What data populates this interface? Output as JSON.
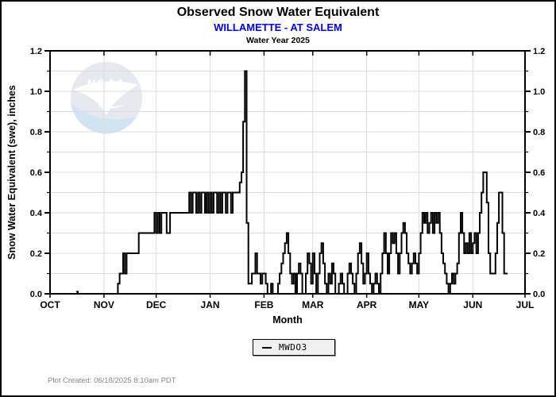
{
  "header": {
    "title": "Observed Snow Water Equivalent",
    "subtitle": "WILLAMETTE - AT SALEM",
    "subtitle_color": "#0000ff",
    "water_year": "Water Year 2025"
  },
  "watermark": {
    "name": "noaa-logo",
    "text": "NOAA"
  },
  "legend": {
    "entries": [
      {
        "label": "MWDO3",
        "color": "#000000"
      }
    ],
    "position": "bottom-center"
  },
  "footer": {
    "created_text": "Plot Created: 06/18/2025 8:10am PDT"
  },
  "theme": {
    "line_color": "#000000",
    "grid_color": "#dcdcdc",
    "axis_color": "#000000",
    "watermark_circle": "#e7e9f1",
    "watermark_wave": "#d2e4f2",
    "watermark_bird": "#ffffff",
    "footer_color": "#878787"
  },
  "chart_data": {
    "type": "line",
    "step": true,
    "title": "Observed Snow Water Equivalent",
    "subtitle": "WILLAMETTE - AT SALEM",
    "caption": "Water Year 2025",
    "xlabel": "Month",
    "ylabel": "Snow Water Equivalent (swe),  inches",
    "x_unit": "days since Oct 1 (Water Year 2025)",
    "month_ticks": [
      "OCT",
      "NOV",
      "DEC",
      "JAN",
      "FEB",
      "MAR",
      "APR",
      "MAY",
      "JUN",
      "JUL"
    ],
    "month_start_days": [
      0,
      31,
      61,
      92,
      123,
      151,
      182,
      212,
      243,
      273
    ],
    "xlim_days": [
      0,
      273
    ],
    "ylim": [
      0.0,
      1.2
    ],
    "y_major_ticks": [
      0.0,
      0.2,
      0.4,
      0.6,
      0.8,
      1.0,
      1.2
    ],
    "y_tick_labels": [
      "0.0",
      "0.2",
      "0.4",
      "0.6",
      "0.8",
      "1.0",
      "1.2"
    ],
    "y_minor_step": 0.1,
    "grid": true,
    "legend": {
      "position": "bottom-center",
      "entries": [
        {
          "label": "MWDO3",
          "color": "#000000"
        }
      ]
    },
    "series": [
      {
        "name": "MWDO3",
        "color": "#000000",
        "points": [
          [
            15,
            0.01
          ],
          [
            16,
            0.0
          ],
          [
            17,
            null
          ],
          [
            32,
            0.0
          ],
          [
            39,
            0.05
          ],
          [
            40,
            0.1
          ],
          [
            42,
            0.2
          ],
          [
            43,
            0.1
          ],
          [
            44,
            0.2
          ],
          [
            45,
            0.2
          ],
          [
            51,
            0.3
          ],
          [
            60,
            0.4
          ],
          [
            61,
            0.3
          ],
          [
            62,
            0.4
          ],
          [
            63,
            0.3
          ],
          [
            64,
            0.4
          ],
          [
            67,
            0.3
          ],
          [
            69,
            0.4
          ],
          [
            80,
            0.5
          ],
          [
            81,
            0.4
          ],
          [
            82,
            0.5
          ],
          [
            84,
            0.4
          ],
          [
            85,
            0.5
          ],
          [
            86,
            0.4
          ],
          [
            87,
            0.5
          ],
          [
            89,
            0.4
          ],
          [
            90,
            0.5
          ],
          [
            91,
            0.4
          ],
          [
            92,
            0.5
          ],
          [
            93,
            0.4
          ],
          [
            94,
            0.5
          ],
          [
            96,
            0.4
          ],
          [
            97,
            0.5
          ],
          [
            98,
            0.4
          ],
          [
            99,
            0.5
          ],
          [
            101,
            0.4
          ],
          [
            102,
            0.5
          ],
          [
            104,
            0.4
          ],
          [
            105,
            0.5
          ],
          [
            108,
            0.5
          ],
          [
            109,
            0.55
          ],
          [
            110,
            0.6
          ],
          [
            111,
            0.85
          ],
          [
            112,
            1.1
          ],
          [
            113,
            0.35
          ],
          [
            114,
            0.05
          ],
          [
            116,
            0.1
          ],
          [
            118,
            0.2
          ],
          [
            119,
            0.1
          ],
          [
            121,
            0.05
          ],
          [
            122,
            0.1
          ],
          [
            123,
            0.1
          ],
          [
            124,
            0.05
          ],
          [
            125,
            0.0
          ],
          [
            127,
            0.05
          ],
          [
            128,
            0.0
          ],
          [
            131,
            0.05
          ],
          [
            132,
            0.1
          ],
          [
            133,
            0.15
          ],
          [
            134,
            0.2
          ],
          [
            135,
            0.25
          ],
          [
            136,
            0.3
          ],
          [
            137,
            0.2
          ],
          [
            138,
            0.1
          ],
          [
            139,
            0.05
          ],
          [
            140,
            0.1
          ],
          [
            141,
            0.0
          ],
          [
            142,
            0.1
          ],
          [
            143,
            0.15
          ],
          [
            144,
            0.1
          ],
          [
            145,
            0.0
          ],
          [
            147,
            0.1
          ],
          [
            148,
            0.2
          ],
          [
            149,
            0.15
          ],
          [
            150,
            0.05
          ],
          [
            151,
            0.2
          ],
          [
            152,
            0.1
          ],
          [
            153,
            0.0
          ],
          [
            154,
            0.1
          ],
          [
            155,
            0.2
          ],
          [
            156,
            0.25
          ],
          [
            157,
            0.15
          ],
          [
            158,
            0.05
          ],
          [
            159,
            0.0
          ],
          [
            160,
            0.1
          ],
          [
            161,
            0.05
          ],
          [
            162,
            0.15
          ],
          [
            163,
            0.1
          ],
          [
            164,
            0.0
          ],
          [
            166,
            0.05
          ],
          [
            167,
            0.1
          ],
          [
            168,
            0.05
          ],
          [
            169,
            0.0
          ],
          [
            171,
            0.1
          ],
          [
            172,
            0.15
          ],
          [
            173,
            0.1
          ],
          [
            174,
            0.05
          ],
          [
            175,
            0.0
          ],
          [
            176,
            0.1
          ],
          [
            177,
            0.2
          ],
          [
            178,
            0.25
          ],
          [
            179,
            0.15
          ],
          [
            180,
            0.05
          ],
          [
            181,
            0.1
          ],
          [
            182,
            0.2
          ],
          [
            183,
            0.1
          ],
          [
            184,
            0.05
          ],
          [
            185,
            0.0
          ],
          [
            186,
            0.05
          ],
          [
            187,
            0.1
          ],
          [
            188,
            0.05
          ],
          [
            189,
            0.0
          ],
          [
            190,
            0.1
          ],
          [
            191,
            0.2
          ],
          [
            192,
            0.3
          ],
          [
            193,
            0.2
          ],
          [
            194,
            0.1
          ],
          [
            195,
            0.2
          ],
          [
            196,
            0.3
          ],
          [
            197,
            0.25
          ],
          [
            198,
            0.3
          ],
          [
            199,
            0.2
          ],
          [
            200,
            0.1
          ],
          [
            201,
            0.2
          ],
          [
            202,
            0.3
          ],
          [
            203,
            0.35
          ],
          [
            204,
            0.3
          ],
          [
            205,
            0.2
          ],
          [
            206,
            0.15
          ],
          [
            207,
            0.1
          ],
          [
            208,
            0.15
          ],
          [
            209,
            0.2
          ],
          [
            210,
            0.15
          ],
          [
            211,
            0.1
          ],
          [
            212,
            0.2
          ],
          [
            213,
            0.3
          ],
          [
            214,
            0.4
          ],
          [
            215,
            0.35
          ],
          [
            216,
            0.4
          ],
          [
            217,
            0.3
          ],
          [
            218,
            0.35
          ],
          [
            219,
            0.4
          ],
          [
            220,
            0.3
          ],
          [
            221,
            0.4
          ],
          [
            222,
            0.35
          ],
          [
            223,
            0.4
          ],
          [
            224,
            0.3
          ],
          [
            225,
            0.2
          ],
          [
            226,
            0.15
          ],
          [
            227,
            0.1
          ],
          [
            228,
            0.05
          ],
          [
            229,
            0.0
          ],
          [
            230,
            0.05
          ],
          [
            231,
            0.1
          ],
          [
            232,
            0.05
          ],
          [
            233,
            0.1
          ],
          [
            234,
            0.15
          ],
          [
            235,
            0.3
          ],
          [
            236,
            0.4
          ],
          [
            237,
            0.3
          ],
          [
            238,
            0.2
          ],
          [
            239,
            0.25
          ],
          [
            240,
            0.2
          ],
          [
            241,
            0.3
          ],
          [
            242,
            0.2
          ],
          [
            243,
            0.25
          ],
          [
            244,
            0.3
          ],
          [
            245,
            0.2
          ],
          [
            246,
            0.3
          ],
          [
            247,
            0.4
          ],
          [
            248,
            0.5
          ],
          [
            249,
            0.6
          ],
          [
            250,
            0.6
          ],
          [
            251,
            0.45
          ],
          [
            252,
            0.2
          ],
          [
            253,
            0.1
          ],
          [
            256,
            0.2
          ],
          [
            257,
            0.35
          ],
          [
            258,
            0.5
          ],
          [
            259,
            0.5
          ],
          [
            260,
            0.3
          ],
          [
            261,
            0.1
          ],
          [
            263,
            0.1
          ]
        ]
      }
    ]
  }
}
